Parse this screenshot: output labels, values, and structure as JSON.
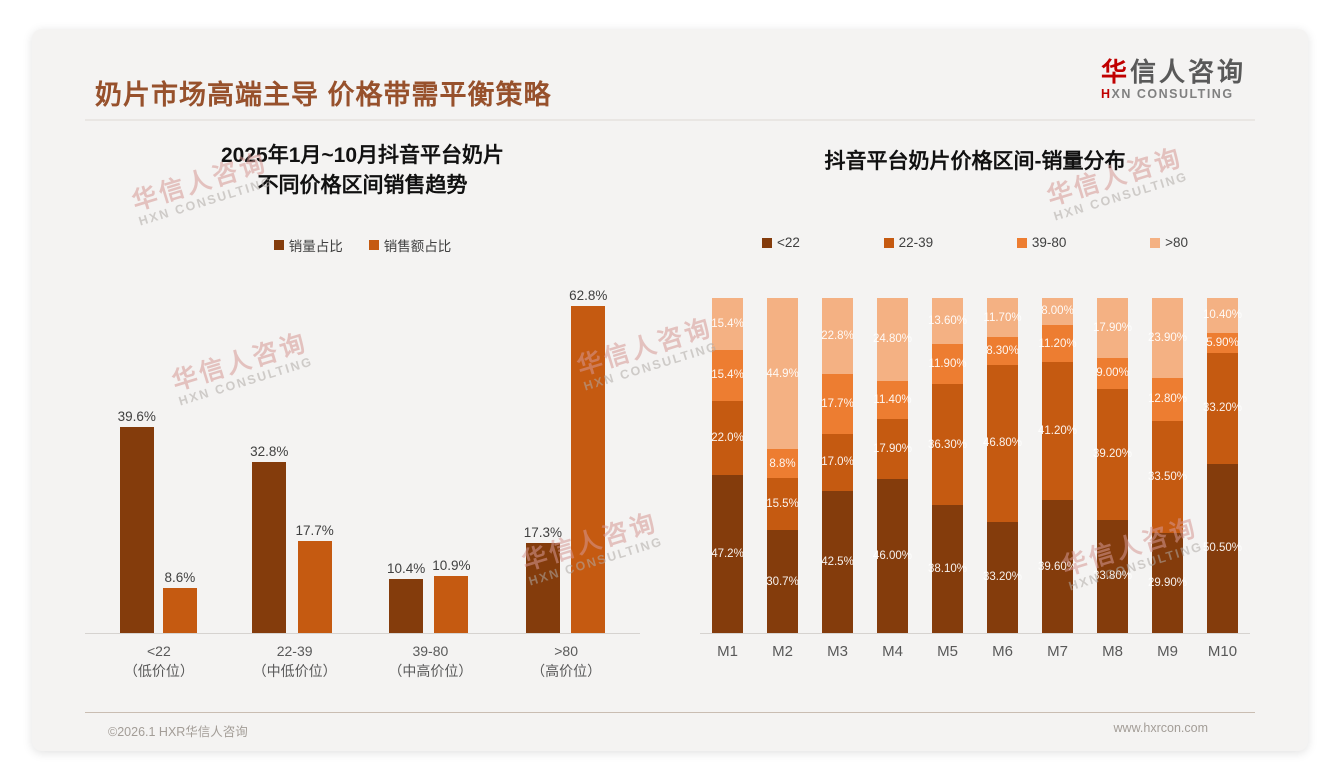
{
  "page": {
    "title": "奶片市场高端主导 价格带需平衡策略",
    "footer_left": "©2026.1 HXR华信人咨询",
    "footer_right": "www.hxrcon.com"
  },
  "logo": {
    "cn_accent": "华",
    "cn_rest": "信人咨询",
    "en_accent": "H",
    "en_rest": "XN CONSULTING"
  },
  "watermark": {
    "line1": "华信人咨询",
    "line2": "HXN CONSULTING"
  },
  "colors": {
    "title_brown": "#97512c",
    "logo_red": "#c00000",
    "series_dark_brown": "#843C0C",
    "series_dark_orange": "#C55A11",
    "series_orange": "#ED7D31",
    "series_light_orange": "#F4B183"
  },
  "chart_data": [
    {
      "id": "trend",
      "type": "bar",
      "title_lines": [
        "2025年1月~10月抖音平台奶片",
        "不同价格区间销售趋势"
      ],
      "categories": [
        "<22",
        "22-39",
        "39-80",
        ">80"
      ],
      "category_sublabels": [
        "（低价位）",
        "（中低价位）",
        "（中高价位）",
        "（高价位）"
      ],
      "ylim": [
        0,
        70
      ],
      "grid": false,
      "legend_position": "top",
      "label_suffix": "%",
      "series": [
        {
          "name": "销量占比",
          "color": "#843C0C",
          "values": [
            "39.6",
            "32.8",
            "10.4",
            "17.3"
          ]
        },
        {
          "name": "销售额占比",
          "color": "#C55A11",
          "values": [
            "8.6",
            "17.7",
            "10.9",
            "62.8"
          ]
        }
      ]
    },
    {
      "id": "distribution",
      "type": "stacked-bar",
      "title": "抖音平台奶片价格区间-销量分布",
      "categories": [
        "M1",
        "M2",
        "M3",
        "M4",
        "M5",
        "M6",
        "M7",
        "M8",
        "M9",
        "M10"
      ],
      "ylim": [
        0,
        100
      ],
      "grid": false,
      "legend_position": "top",
      "label_suffix": "%",
      "series": [
        {
          "name": "<22",
          "color": "#843C0C",
          "values": [
            "47.2",
            "30.7",
            "42.5",
            "46.00",
            "38.10",
            "33.20",
            "39.60",
            "33.80",
            "29.90",
            "50.50"
          ]
        },
        {
          "name": "22-39",
          "color": "#C55A11",
          "values": [
            "22.0",
            "15.5",
            "17.0",
            "17.90",
            "36.30",
            "46.80",
            "41.20",
            "39.20",
            "33.50",
            "33.20"
          ]
        },
        {
          "name": "39-80",
          "color": "#ED7D31",
          "values": [
            "15.4",
            "8.8",
            "17.7",
            "11.40",
            "11.90",
            "8.30",
            "11.20",
            "9.00",
            "12.80",
            "5.90"
          ]
        },
        {
          "name": ">80",
          "color": "#F4B183",
          "values": [
            "15.4",
            "44.9",
            "22.8",
            "24.80",
            "13.60",
            "11.70",
            "8.00",
            "17.90",
            "23.90",
            "10.40"
          ]
        }
      ]
    }
  ]
}
